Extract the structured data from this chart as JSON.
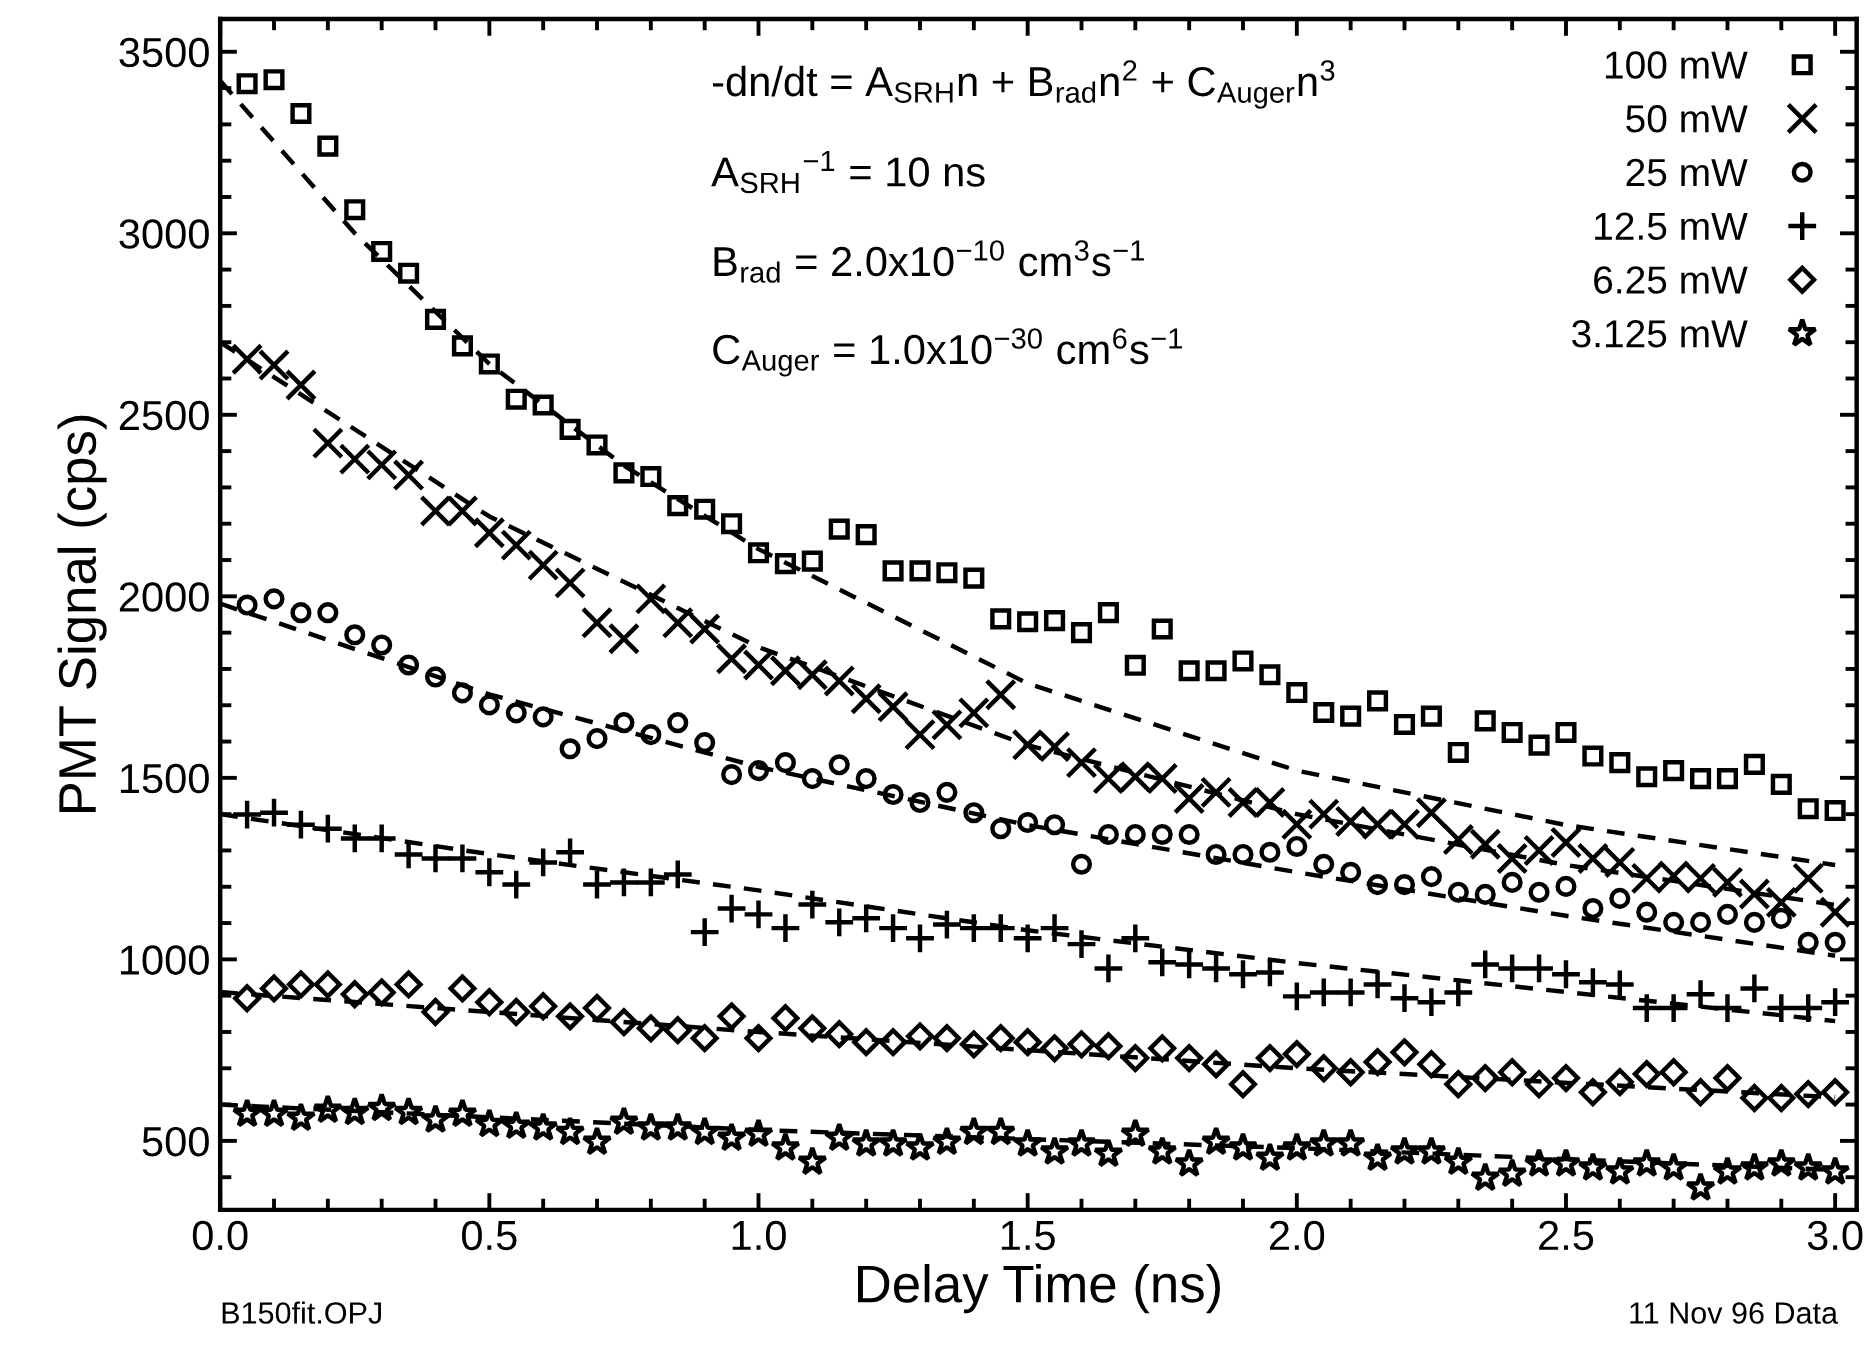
{
  "chart_data": {
    "type": "scatter",
    "xlabel": "Delay Time (ns)",
    "ylabel": "PMT Signal (cps)",
    "xlim": [
      0,
      3.04
    ],
    "ylim": [
      310,
      3590
    ],
    "xticks": [
      {
        "value": 0,
        "label": "0.0"
      },
      {
        "value": 0.1,
        "label": null
      },
      {
        "value": 0.2,
        "label": null
      },
      {
        "value": 0.3,
        "label": null
      },
      {
        "value": 0.4,
        "label": null
      },
      {
        "value": 0.5,
        "label": "0.5"
      },
      {
        "value": 0.6,
        "label": null
      },
      {
        "value": 0.7,
        "label": null
      },
      {
        "value": 0.8,
        "label": null
      },
      {
        "value": 0.9,
        "label": null
      },
      {
        "value": 1.0,
        "label": "1.0"
      },
      {
        "value": 1.1,
        "label": null
      },
      {
        "value": 1.2,
        "label": null
      },
      {
        "value": 1.3,
        "label": null
      },
      {
        "value": 1.4,
        "label": null
      },
      {
        "value": 1.5,
        "label": "1.5"
      },
      {
        "value": 1.6,
        "label": null
      },
      {
        "value": 1.7,
        "label": null
      },
      {
        "value": 1.8,
        "label": null
      },
      {
        "value": 1.9,
        "label": null
      },
      {
        "value": 2.0,
        "label": "2.0"
      },
      {
        "value": 2.1,
        "label": null
      },
      {
        "value": 2.2,
        "label": null
      },
      {
        "value": 2.3,
        "label": null
      },
      {
        "value": 2.4,
        "label": null
      },
      {
        "value": 2.5,
        "label": "2.5"
      },
      {
        "value": 2.6,
        "label": null
      },
      {
        "value": 2.7,
        "label": null
      },
      {
        "value": 2.8,
        "label": null
      },
      {
        "value": 2.9,
        "label": null
      },
      {
        "value": 3.0,
        "label": "3.0"
      }
    ],
    "yticks": [
      {
        "value": 400,
        "label": null
      },
      500,
      {
        "value": 600,
        "label": null
      },
      {
        "value": 700,
        "label": null
      },
      {
        "value": 800,
        "label": null
      },
      {
        "value": 900,
        "label": null
      },
      1000,
      {
        "value": 1100,
        "label": null
      },
      {
        "value": 1200,
        "label": null
      },
      {
        "value": 1300,
        "label": null
      },
      {
        "value": 1400,
        "label": null
      },
      1500,
      {
        "value": 1600,
        "label": null
      },
      {
        "value": 1700,
        "label": null
      },
      {
        "value": 1800,
        "label": null
      },
      {
        "value": 1900,
        "label": null
      },
      2000,
      {
        "value": 2100,
        "label": null
      },
      {
        "value": 2200,
        "label": null
      },
      {
        "value": 2300,
        "label": null
      },
      {
        "value": 2400,
        "label": null
      },
      2500,
      {
        "value": 2600,
        "label": null
      },
      {
        "value": 2700,
        "label": null
      },
      {
        "value": 2800,
        "label": null
      },
      {
        "value": 2900,
        "label": null
      },
      3000,
      {
        "value": 3100,
        "label": null
      },
      {
        "value": 3200,
        "label": null
      },
      {
        "value": 3300,
        "label": null
      },
      {
        "value": 3400,
        "label": null
      },
      3500
    ],
    "grid": false,
    "legend": "top right",
    "x": [
      0.05,
      0.1,
      0.15,
      0.2,
      0.25,
      0.3,
      0.35,
      0.4,
      0.45,
      0.5,
      0.55,
      0.6,
      0.65,
      0.7,
      0.75,
      0.8,
      0.85,
      0.9,
      0.95,
      1.0,
      1.05,
      1.1,
      1.15,
      1.2,
      1.25,
      1.3,
      1.35,
      1.4,
      1.45,
      1.5,
      1.55,
      1.6,
      1.65,
      1.7,
      1.75,
      1.8,
      1.85,
      1.9,
      1.95,
      2.0,
      2.05,
      2.1,
      2.15,
      2.2,
      2.25,
      2.3,
      2.35,
      2.4,
      2.45,
      2.5,
      2.55,
      2.6,
      2.65,
      2.7,
      2.75,
      2.8,
      2.85,
      2.9,
      2.95,
      3.0
    ],
    "series": [
      {
        "name": "100 mW",
        "color": "#000000",
        "marker": "square",
        "values": [
          3412,
          3423,
          3330,
          3240,
          3065,
          2950,
          2890,
          2763,
          2690,
          2640,
          2543,
          2527,
          2460,
          2417,
          2340,
          2330,
          2250,
          2240,
          2200,
          2120,
          2090,
          2097,
          2185,
          2170,
          2070,
          2070,
          2065,
          2050,
          1938,
          1930,
          1933,
          1900,
          1955,
          1810,
          1910,
          1795,
          1795,
          1822,
          1784,
          1735,
          1680,
          1670,
          1712,
          1647,
          1670,
          1570,
          1657,
          1625,
          1590,
          1625,
          1560,
          1542,
          1503,
          1520,
          1498,
          1498,
          1537,
          1482,
          1415,
          1410
        ]
      },
      {
        "name": "50 mW",
        "color": "#000000",
        "marker": "cross",
        "values": [
          2653,
          2637,
          2582,
          2422,
          2378,
          2362,
          2334,
          2235,
          2235,
          2175,
          2141,
          2086,
          2037,
          1927,
          1883,
          1993,
          1927,
          1910,
          1828,
          1811,
          1795,
          1784,
          1767,
          1718,
          1696,
          1619,
          1646,
          1679,
          1729,
          1591,
          1586,
          1542,
          1498,
          1503,
          1498,
          1443,
          1460,
          1432,
          1432,
          1372,
          1400,
          1380,
          1372,
          1372,
          1404,
          1330,
          1317,
          1278,
          1300,
          1322,
          1278,
          1267,
          1223,
          1230,
          1223,
          1212,
          1180,
          1157,
          1223,
          1130
        ]
      },
      {
        "name": "25 mW",
        "color": "#000000",
        "marker": "circle",
        "values": [
          1976,
          1993,
          1955,
          1955,
          1894,
          1866,
          1811,
          1778,
          1734,
          1701,
          1679,
          1668,
          1580,
          1608,
          1652,
          1619,
          1652,
          1597,
          1509,
          1520,
          1542,
          1498,
          1536,
          1498,
          1454,
          1432,
          1460,
          1404,
          1360,
          1377,
          1371,
          1262,
          1344,
          1344,
          1344,
          1344,
          1289,
          1289,
          1295,
          1311,
          1262,
          1240,
          1206,
          1206,
          1228,
          1185,
          1179,
          1212,
          1185,
          1201,
          1140,
          1168,
          1130,
          1102,
          1102,
          1124,
          1102,
          1113,
          1047,
          1047
        ]
      },
      {
        "name": "12.5 mW",
        "color": "#000000",
        "marker": "plus",
        "values": [
          1399,
          1404,
          1371,
          1360,
          1333,
          1333,
          1289,
          1278,
          1278,
          1240,
          1206,
          1267,
          1295,
          1206,
          1212,
          1212,
          1234,
          1075,
          1140,
          1124,
          1086,
          1151,
          1102,
          1113,
          1086,
          1058,
          1096,
          1086,
          1086,
          1058,
          1086,
          1042,
          975,
          1058,
          992,
          986,
          975,
          959,
          964,
          898,
          909,
          909,
          931,
          893,
          882,
          909,
          986,
          975,
          975,
          959,
          937,
          931,
          866,
          866,
          904,
          866,
          920,
          866,
          866,
          882
        ]
      },
      {
        "name": "6.25 mW",
        "color": "#000000",
        "marker": "diamond",
        "values": [
          893,
          920,
          931,
          931,
          904,
          909,
          931,
          855,
          920,
          882,
          855,
          871,
          843,
          866,
          827,
          810,
          805,
          783,
          843,
          783,
          838,
          810,
          794,
          772,
          772,
          788,
          783,
          766,
          783,
          772,
          755,
          766,
          761,
          728,
          755,
          728,
          711,
          656,
          728,
          739,
          700,
          689,
          717,
          744,
          711,
          656,
          673,
          689,
          656,
          673,
          634,
          662,
          684,
          689,
          634,
          673,
          618,
          618,
          629,
          634
        ]
      },
      {
        "name": "3.125 mW",
        "color": "#000000",
        "marker": "star",
        "values": [
          574,
          574,
          563,
          585,
          579,
          590,
          579,
          558,
          574,
          546,
          541,
          536,
          524,
          497,
          552,
          536,
          536,
          524,
          508,
          519,
          481,
          442,
          508,
          492,
          492,
          481,
          497,
          524,
          524,
          492,
          470,
          492,
          464,
          519,
          470,
          437,
          497,
          481,
          453,
          481,
          492,
          492,
          453,
          470,
          470,
          442,
          398,
          409,
          437,
          437,
          426,
          415,
          437,
          426,
          371,
          415,
          426,
          437,
          426,
          415
        ]
      },
      {
        "type": "line",
        "color": "#000000",
        "line_style": "dashed",
        "marker": "none",
        "x": [
          0,
          0.25,
          0.5,
          0.75,
          1.0,
          1.5,
          2.0,
          2.5,
          3.0
        ],
        "values": [
          3420,
          3000,
          2640,
          2360,
          2130,
          1760,
          1520,
          1370,
          1260
        ]
      },
      {
        "type": "line",
        "color": "#000000",
        "line_style": "dashed",
        "marker": "none",
        "x": [
          0,
          0.5,
          1.0,
          1.5,
          2.0,
          2.5,
          3.0
        ],
        "values": [
          2700,
          2220,
          1860,
          1590,
          1400,
          1260,
          1150
        ]
      },
      {
        "type": "line",
        "color": "#000000",
        "line_style": "dashed",
        "marker": "none",
        "x": [
          0,
          0.5,
          1.0,
          1.5,
          2.0,
          2.5,
          3.0
        ],
        "values": [
          1980,
          1730,
          1530,
          1370,
          1240,
          1120,
          1010
        ]
      },
      {
        "type": "line",
        "color": "#000000",
        "line_style": "dashed",
        "marker": "none",
        "x": [
          0,
          0.5,
          1.0,
          1.5,
          2.0,
          2.5,
          3.0
        ],
        "values": [
          1400,
          1290,
          1190,
          1080,
          990,
          910,
          830
        ]
      },
      {
        "type": "line",
        "color": "#000000",
        "line_style": "dashed",
        "marker": "none",
        "x": [
          0,
          1.0,
          2.0,
          3.0
        ],
        "values": [
          910,
          800,
          700,
          620
        ]
      },
      {
        "type": "line",
        "color": "#000000",
        "line_style": "dashed",
        "marker": "none",
        "x": [
          0,
          1.0,
          2.0,
          3.0
        ],
        "values": [
          600,
          530,
          480,
          420
        ]
      }
    ],
    "annotations": [
      "-dn/dt = A$_{SRH}$n + B$_{rad}$n$^{2}$ + C$_{Auger}$n$^{3}$",
      "A$_{SRH}$$^{−1}$ = 10 ns",
      "B$_{rad}$ = 2.0x10$^{−10}$ cm$^{3}$s$^{−1}$",
      "C$_{Auger}$ = 1.0x10$^{−30}$ cm$^{6}$s$^{−1}$",
      "B150fit.OPJ",
      "11 Nov 96 Data"
    ]
  }
}
